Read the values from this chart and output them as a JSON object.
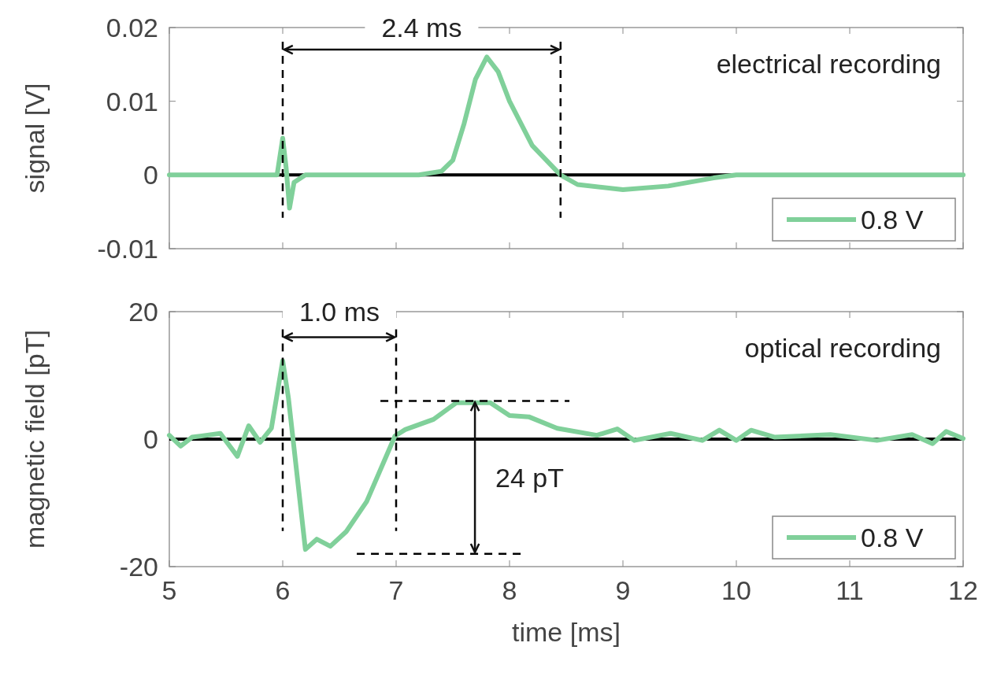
{
  "chart_data": [
    {
      "type": "line",
      "ylabel": "signal [V]",
      "xlim": [
        5,
        12
      ],
      "xticks": [
        5,
        6,
        7,
        8,
        9,
        10,
        11,
        12
      ],
      "ylim": [
        -0.01,
        0.02
      ],
      "yticks": [
        -0.01,
        0,
        0.01,
        0.02
      ],
      "tick_labels": "y",
      "legend": "bottom right",
      "x": [
        5,
        5.95,
        6.0,
        6.03,
        6.06,
        6.1,
        6.2,
        7.2,
        7.4,
        7.5,
        7.6,
        7.7,
        7.8,
        7.9,
        8.0,
        8.2,
        8.45,
        8.6,
        9.0,
        9.4,
        9.8,
        10.0,
        12
      ],
      "series": [
        {
          "name": "0.8 V",
          "color": "#80d09a",
          "values": [
            0,
            0,
            0.005,
            0.001,
            -0.0045,
            -0.001,
            0,
            0,
            0.0005,
            0.002,
            0.007,
            0.013,
            0.016,
            0.014,
            0.01,
            0.004,
            0,
            -0.0013,
            -0.002,
            -0.0015,
            -0.0004,
            0,
            0
          ]
        }
      ],
      "ref_lines": [
        {
          "axis": "y",
          "value": 0,
          "color": "#000000",
          "line_style": "solid"
        },
        {
          "axis": "x",
          "value": 6.0,
          "color": "#000000",
          "line_style": "dashed"
        },
        {
          "axis": "x",
          "value": 8.45,
          "color": "#000000",
          "line_style": "dashed"
        }
      ],
      "annotations": [
        "2.4 ms",
        "electrical recording"
      ]
    },
    {
      "type": "line",
      "ylabel": "magnetic field [pT]",
      "xlabel": "time [ms]",
      "xlim": [
        5,
        12
      ],
      "xticks": [
        5,
        6,
        7,
        8,
        9,
        10,
        11,
        12
      ],
      "ylim": [
        -20,
        20
      ],
      "yticks": [
        -20,
        0,
        20
      ],
      "legend": "bottom right",
      "x": [
        5,
        5.1,
        5.2,
        5.45,
        5.6,
        5.7,
        5.8,
        5.9,
        6.0,
        6.05,
        6.2,
        6.3,
        6.42,
        6.56,
        6.74,
        6.99,
        7.08,
        7.33,
        7.53,
        7.83,
        8.0,
        8.17,
        8.42,
        8.77,
        8.95,
        9.1,
        9.42,
        9.7,
        9.85,
        10.0,
        10.13,
        10.34,
        10.83,
        11.24,
        11.55,
        11.73,
        11.85,
        12
      ],
      "series": [
        {
          "name": "0.8 V",
          "color": "#80d09a",
          "values": [
            0.6,
            -1.1,
            0.3,
            0.9,
            -2.7,
            2.1,
            -0.5,
            1.7,
            12.3,
            6.5,
            -17.3,
            -15.7,
            -16.8,
            -14.5,
            -9.8,
            0.5,
            1.5,
            3.1,
            5.7,
            5.7,
            3.7,
            3.5,
            1.7,
            0.6,
            1.6,
            -0.2,
            0.9,
            -0.2,
            1.4,
            -0.2,
            1.4,
            0.3,
            0.7,
            -0.2,
            0.7,
            -0.7,
            1.2,
            0.1
          ]
        }
      ],
      "ref_lines": [
        {
          "axis": "y",
          "value": 0,
          "color": "#000000",
          "line_style": "solid"
        },
        {
          "axis": "x",
          "value": 6.0,
          "color": "#000000",
          "line_style": "dashed"
        },
        {
          "axis": "x",
          "value": 7.0,
          "color": "#000000",
          "line_style": "dashed"
        },
        {
          "axis": "y",
          "value": 6,
          "color": "#000000",
          "line_style": "dashed"
        },
        {
          "axis": "y",
          "value": -18,
          "color": "#000000",
          "line_style": "dashed"
        }
      ],
      "annotations": [
        "1.0 ms",
        "optical recording",
        "24 pT"
      ]
    }
  ]
}
